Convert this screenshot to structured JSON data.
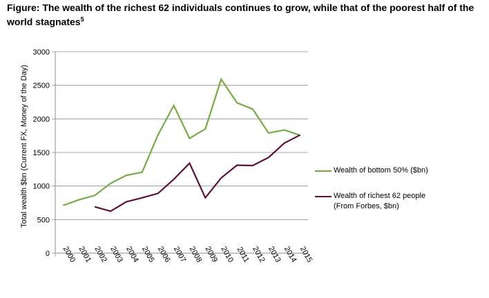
{
  "title": {
    "text": "Figure: The wealth of the richest 62 individuals continues to grow, while that of the poorest half of the world stagnates",
    "footnote": "5"
  },
  "chart_data": {
    "type": "line",
    "title": "The wealth of the richest 62 individuals continues to grow, while that of the poorest half of the world stagnates",
    "xlabel": "",
    "ylabel": "Total wealth $bn (Current FX, Money of the Day)",
    "categories": [
      "2000",
      "2001",
      "2002",
      "2003",
      "2004",
      "2005",
      "2006",
      "2007",
      "2008",
      "2009",
      "2010",
      "2011",
      "2012",
      "2013",
      "2014",
      "2015"
    ],
    "ylim": [
      0,
      3000
    ],
    "yticks": [
      0,
      500,
      1000,
      1500,
      2000,
      2500,
      3000
    ],
    "grid": true,
    "legend_position": "right",
    "series": [
      {
        "name": "Wealth of bottom 50% ($bn)",
        "color": "#77a945",
        "values": [
          710,
          795,
          860,
          1040,
          1160,
          1205,
          1760,
          2200,
          1710,
          1850,
          2590,
          2240,
          2145,
          1790,
          1835,
          1755
        ]
      },
      {
        "name": "Wealth of richest 62 people (From Forbes, $bn)",
        "color": "#5b0f3a",
        "values": [
          null,
          null,
          690,
          625,
          765,
          825,
          890,
          1100,
          1340,
          825,
          1120,
          1310,
          1305,
          1425,
          1640,
          1760
        ]
      }
    ]
  }
}
